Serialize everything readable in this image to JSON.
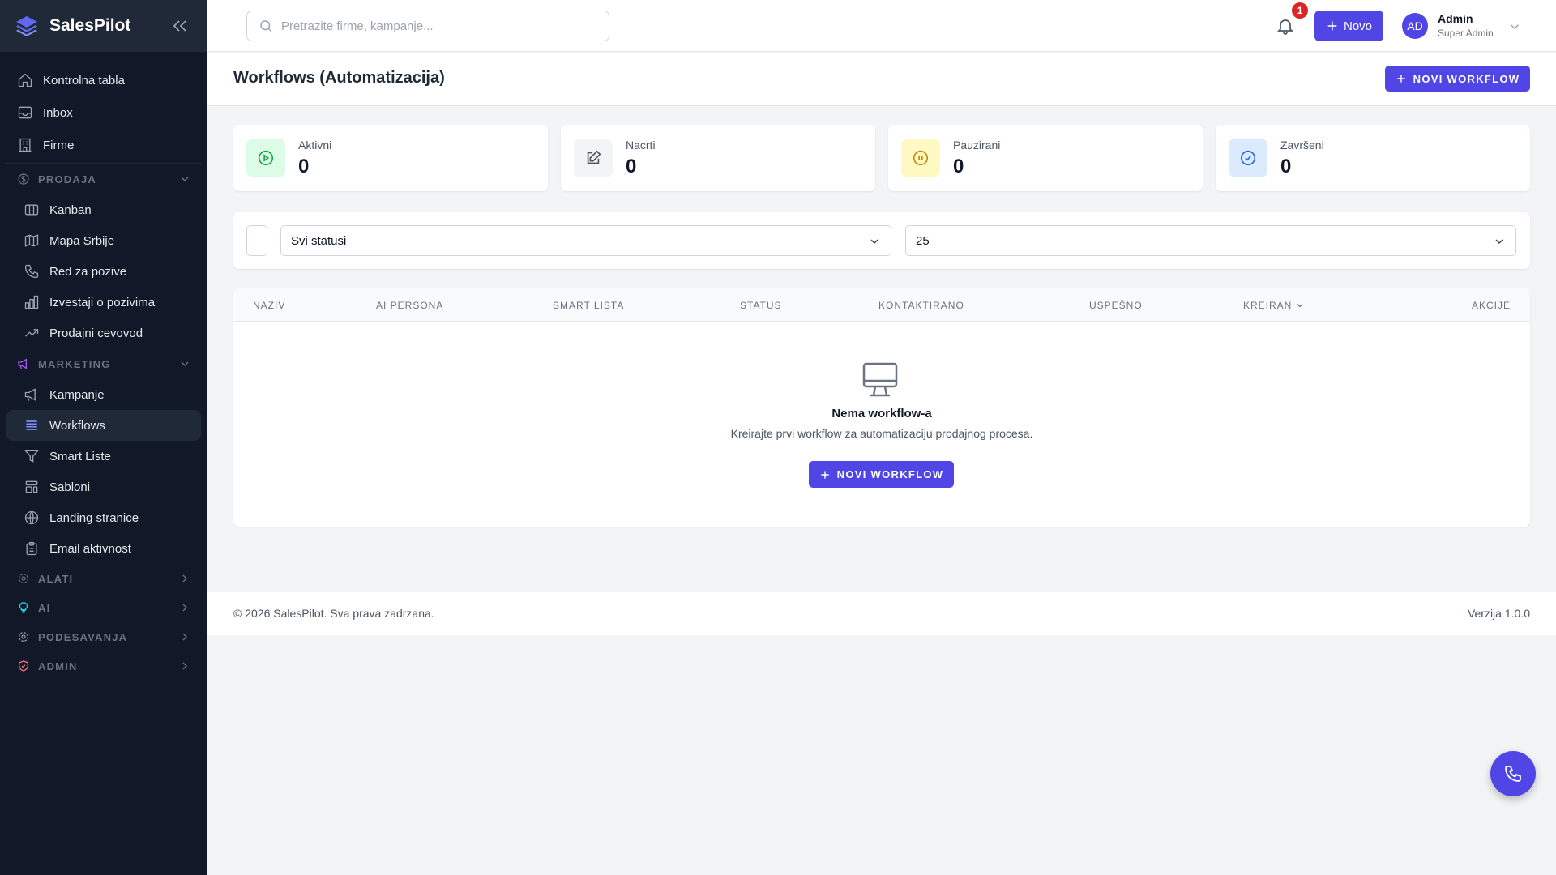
{
  "brand": {
    "name": "SalesPilot",
    "accent": "#4f46e5"
  },
  "sidebar": {
    "top_items": [
      {
        "label": "Kontrolna tabla",
        "icon": "home-icon"
      },
      {
        "label": "Inbox",
        "icon": "inbox-icon"
      },
      {
        "label": "Firme",
        "icon": "building-icon"
      }
    ],
    "prodaja": {
      "label": "PRODAJA",
      "items": [
        {
          "label": "Kanban"
        },
        {
          "label": "Mapa Srbije"
        },
        {
          "label": "Red za pozive"
        },
        {
          "label": "Izvestaji o pozivima"
        },
        {
          "label": "Prodajni cevovod"
        }
      ]
    },
    "marketing": {
      "label": "MARKETING",
      "items": [
        {
          "label": "Kampanje"
        },
        {
          "label": "Workflows",
          "active": true
        },
        {
          "label": "Smart Liste"
        },
        {
          "label": "Sabloni"
        },
        {
          "label": "Landing stranice"
        },
        {
          "label": "Email aktivnost"
        }
      ]
    },
    "collapsed": [
      {
        "label": "ALATI"
      },
      {
        "label": "AI"
      },
      {
        "label": "PODESAVANJA"
      },
      {
        "label": "ADMIN"
      }
    ]
  },
  "header": {
    "search_placeholder": "Pretrazite firme, kampanje...",
    "notification_count": "1",
    "new_label": "Novo",
    "user": {
      "initials": "AD",
      "name": "Admin",
      "role": "Super Admin"
    }
  },
  "page": {
    "title": "Workflows (Automatizacija)",
    "new_workflow_label": "NOVI WORKFLOW"
  },
  "stats": [
    {
      "label": "Aktivni",
      "value": "0",
      "color": "#16a34a"
    },
    {
      "label": "Nacrti",
      "value": "0",
      "color": "#4b5563"
    },
    {
      "label": "Pauzirani",
      "value": "0",
      "color": "#ca8a04"
    },
    {
      "label": "Završeni",
      "value": "0",
      "color": "#2563eb"
    }
  ],
  "filters": {
    "status": "Svi statusi",
    "per_page": "25"
  },
  "table": {
    "columns": [
      "NAZIV",
      "AI PERSONA",
      "SMART LISTA",
      "STATUS",
      "KONTAKTIRANO",
      "USPEŠNO",
      "KREIRAN",
      "AKCIJE"
    ],
    "sorted_by": "KREIRAN",
    "rows": []
  },
  "empty": {
    "title": "Nema workflow-a",
    "subtitle": "Kreirajte prvi workflow za automatizaciju prodajnog procesa.",
    "button": "NOVI WORKFLOW"
  },
  "footer": {
    "copyright": "© 2026 SalesPilot. Sva prava zadrzana.",
    "version": "Verzija 1.0.0"
  }
}
